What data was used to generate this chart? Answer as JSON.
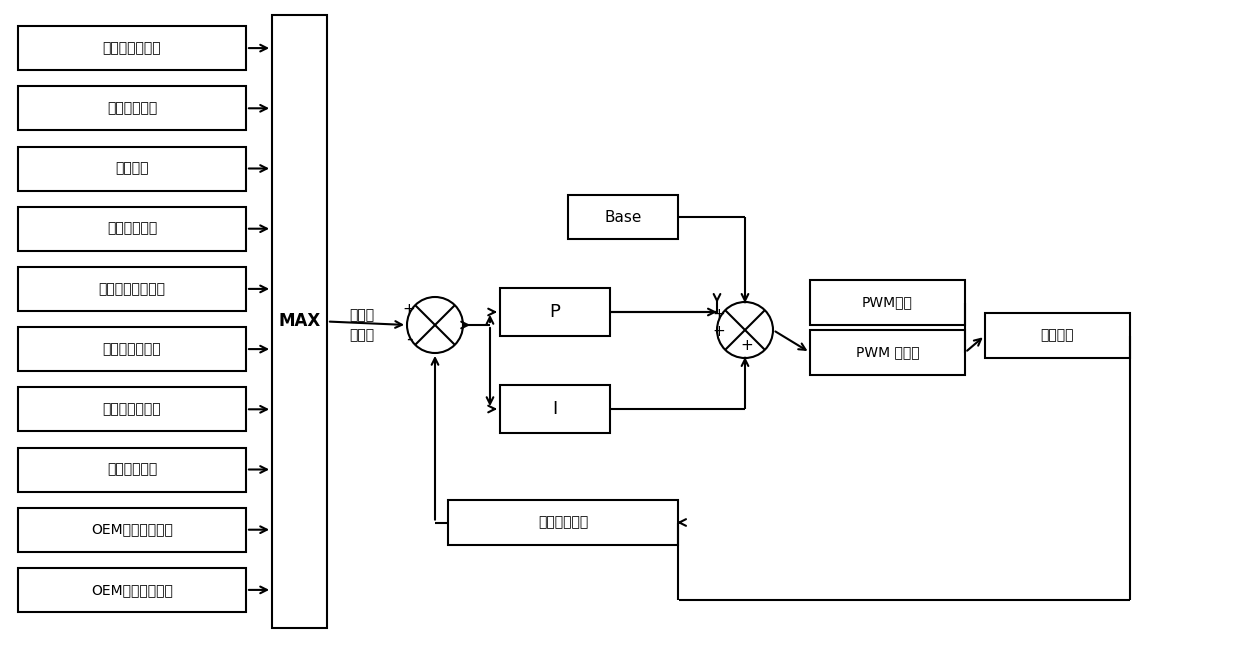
{
  "input_boxes": [
    "冷却液温度请求",
    "进气温度请求",
    "车速请求",
    "空调压力请求",
    "手动风扇开关请求",
    "发动机制动请求",
    "发动机转速请求",
    "燃油温度请求",
    "OEM辅助压力请求",
    "OEM辅助温度请求"
  ],
  "fig_width": 12.4,
  "fig_height": 6.45,
  "bg_color": "#ffffff",
  "lc": "#000000",
  "tc": "#000000",
  "font_size": 10,
  "font_family": "SimHei",
  "lw": 1.5
}
